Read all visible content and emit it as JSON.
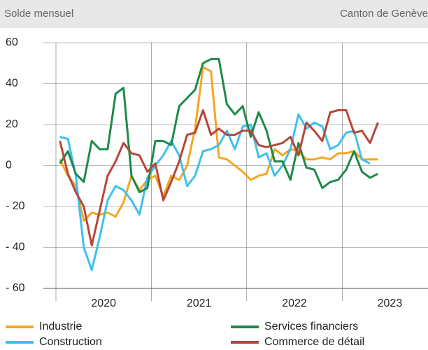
{
  "chart_data": {
    "type": "line",
    "title": "Solde mensuel",
    "subtitle": "Canton de Genève",
    "x": [
      2020.042,
      2020.125,
      2020.208,
      2020.292,
      2020.375,
      2020.458,
      2020.542,
      2020.625,
      2020.708,
      2020.792,
      2020.875,
      2020.958,
      2021.042,
      2021.125,
      2021.208,
      2021.292,
      2021.375,
      2021.458,
      2021.542,
      2021.625,
      2021.708,
      2021.792,
      2021.875,
      2021.958,
      2022.042,
      2022.125,
      2022.208,
      2022.292,
      2022.375,
      2022.458,
      2022.542,
      2022.625,
      2022.708,
      2022.792,
      2022.875,
      2022.958,
      2023.042,
      2023.125,
      2023.208,
      2023.292,
      2023.375
    ],
    "series": [
      {
        "name": "Industrie",
        "color": "#f5a623",
        "values": [
          3,
          -5,
          -10,
          -27,
          -23,
          -24,
          -23,
          -25,
          -18,
          -5,
          -12,
          -7,
          -5,
          -15,
          -5,
          -7,
          0,
          18,
          48,
          46,
          4,
          3,
          0,
          -3,
          -7,
          -5,
          -4,
          8,
          5,
          8,
          7,
          3,
          3,
          4,
          3,
          6,
          6,
          7,
          3,
          3,
          3
        ]
      },
      {
        "name": "Construction",
        "color": "#3fc0ee",
        "values": [
          14,
          13,
          -5,
          -40,
          -51,
          -35,
          -17,
          -10,
          -12,
          -17,
          -24,
          -6,
          0,
          5,
          12,
          5,
          -10,
          -5,
          7,
          8,
          10,
          17,
          8,
          19,
          20,
          4,
          6,
          -5,
          0,
          8,
          25,
          18,
          21,
          19,
          8,
          10,
          16,
          17,
          3,
          1,
          null
        ]
      },
      {
        "name": "Services financiers",
        "color": "#1e8a4a",
        "values": [
          1,
          7,
          -4,
          -8,
          12,
          8,
          8,
          35,
          38,
          -5,
          -13,
          -11,
          12,
          12,
          10,
          29,
          33,
          37,
          50,
          52,
          52,
          30,
          25,
          29,
          14,
          26,
          17,
          2,
          2,
          -7,
          11,
          -1,
          -2,
          -11,
          -8,
          -7,
          -2,
          7,
          -3,
          -6,
          -4
        ]
      },
      {
        "name": "Commerce de détail",
        "color": "#b5473a",
        "values": [
          12,
          -4,
          -13,
          -20,
          -39,
          -22,
          -5,
          2,
          11,
          6,
          5,
          -3,
          1,
          -17,
          -8,
          2,
          15,
          16,
          27,
          15,
          18,
          15,
          15,
          17,
          17,
          10,
          9,
          10,
          11,
          14,
          5,
          21,
          17,
          12,
          26,
          27,
          27,
          16,
          17,
          11,
          21
        ]
      }
    ],
    "xlim": [
      2020,
      2023.9
    ],
    "xticks": [
      {
        "value": 2020,
        "label": "2020"
      },
      {
        "value": 2021,
        "label": "2021"
      },
      {
        "value": 2022,
        "label": "2022"
      },
      {
        "value": 2023,
        "label": "2023"
      }
    ],
    "ylim": [
      -60,
      60
    ],
    "yticks": [
      {
        "value": -60,
        "label": "- 60"
      },
      {
        "value": -40,
        "label": "- 40"
      },
      {
        "value": -20,
        "label": "- 20"
      },
      0,
      20,
      40,
      60
    ],
    "grid": true
  }
}
